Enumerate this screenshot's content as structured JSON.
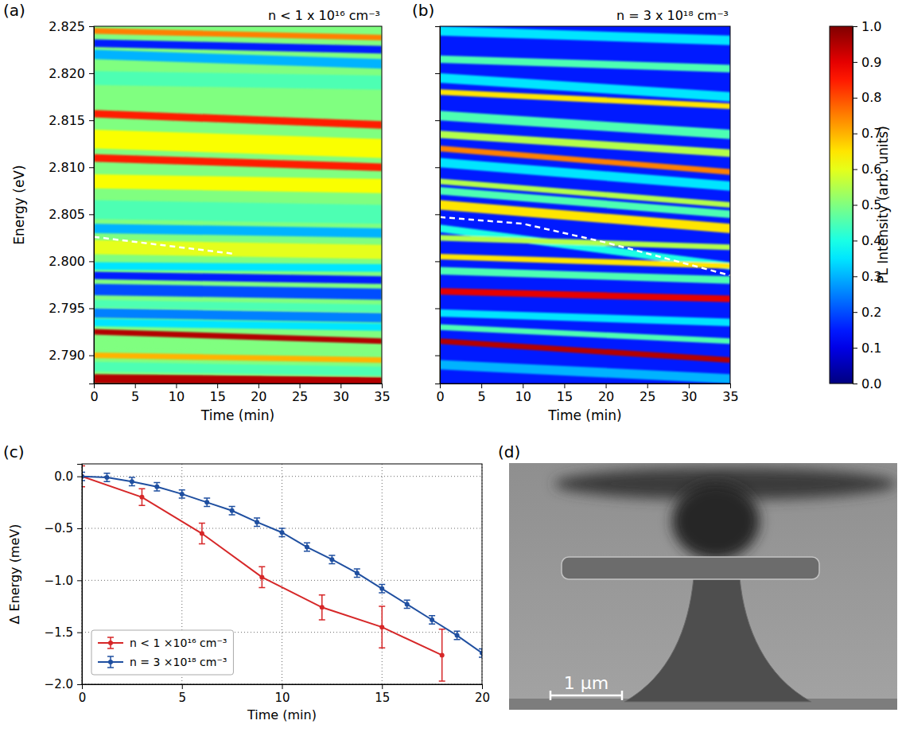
{
  "chart_data": [
    {
      "type": "heatmap",
      "panel": "(a)",
      "annotation": "n < 1 x 10¹⁶ cm⁻³",
      "xlabel": "Time (min)",
      "ylabel": "Energy (eV)",
      "xlim": [
        0,
        35
      ],
      "xticks": [
        0,
        5,
        10,
        15,
        20,
        25,
        30,
        35
      ],
      "ylim": [
        2.787,
        2.825
      ],
      "yticks": [
        {
          "value": 2.79,
          "label": "2.790"
        },
        2.795,
        {
          "value": 2.8,
          "label": "2.800"
        },
        2.805,
        {
          "value": 2.81,
          "label": "2.810"
        },
        2.815,
        {
          "value": 2.82,
          "label": "2.820"
        },
        2.825
      ],
      "tick_labels": true,
      "background": 0.5,
      "bands": [
        {
          "energy_start": 2.8245,
          "energy_end": 2.8238,
          "width": 0.0006,
          "intensity": 0.75
        },
        {
          "energy_start": 2.8232,
          "energy_end": 2.8225,
          "width": 0.0008,
          "intensity": 0.15
        },
        {
          "energy_start": 2.822,
          "energy_end": 2.821,
          "width": 0.001,
          "intensity": 0.3
        },
        {
          "energy_start": 2.8195,
          "energy_end": 2.819,
          "width": 0.0015,
          "intensity": 0.45
        },
        {
          "energy_start": 2.813,
          "energy_end": 2.812,
          "width": 0.002,
          "intensity": 0.62
        },
        {
          "energy_start": 2.8157,
          "energy_end": 2.8145,
          "width": 0.0008,
          "intensity": 0.85
        },
        {
          "energy_start": 2.811,
          "energy_end": 2.81,
          "width": 0.0008,
          "intensity": 0.85
        },
        {
          "energy_start": 2.8085,
          "energy_end": 2.808,
          "width": 0.0015,
          "intensity": 0.62
        },
        {
          "energy_start": 2.8055,
          "energy_end": 2.805,
          "width": 0.002,
          "intensity": 0.45
        },
        {
          "energy_start": 2.8035,
          "energy_end": 2.803,
          "width": 0.001,
          "intensity": 0.3
        },
        {
          "energy_start": 2.8015,
          "energy_end": 2.801,
          "width": 0.0015,
          "intensity": 0.6
        },
        {
          "energy_start": 2.7995,
          "energy_end": 2.7993,
          "width": 0.0008,
          "intensity": 0.35
        },
        {
          "energy_start": 2.7985,
          "energy_end": 2.798,
          "width": 0.0008,
          "intensity": 0.15
        },
        {
          "energy_start": 2.797,
          "energy_end": 2.7965,
          "width": 0.0012,
          "intensity": 0.2
        },
        {
          "energy_start": 2.7955,
          "energy_end": 2.795,
          "width": 0.0008,
          "intensity": 0.45
        },
        {
          "energy_start": 2.7945,
          "energy_end": 2.794,
          "width": 0.001,
          "intensity": 0.25
        },
        {
          "energy_start": 2.7935,
          "energy_end": 2.793,
          "width": 0.0008,
          "intensity": 0.35
        },
        {
          "energy_start": 2.7925,
          "energy_end": 2.7915,
          "width": 0.0006,
          "intensity": 0.95
        },
        {
          "energy_start": 2.7912,
          "energy_end": 2.7905,
          "width": 0.0008,
          "intensity": 0.5
        },
        {
          "energy_start": 2.79,
          "energy_end": 2.7895,
          "width": 0.0006,
          "intensity": 0.7
        },
        {
          "energy_start": 2.7888,
          "energy_end": 2.7883,
          "width": 0.001,
          "intensity": 0.45
        },
        {
          "energy_start": 2.7875,
          "energy_end": 2.7872,
          "width": 0.001,
          "intensity": 0.95
        }
      ],
      "guide_line": {
        "x": [
          0,
          17
        ],
        "y": [
          2.8026,
          2.8008
        ],
        "line_style": "dashed",
        "color": "#ffffff"
      }
    },
    {
      "type": "heatmap",
      "panel": "(b)",
      "annotation": "n = 3 x 10¹⁸ cm⁻³",
      "xlabel": "Time (min)",
      "xlim": [
        0,
        35
      ],
      "xticks": [
        0,
        5,
        10,
        15,
        20,
        25,
        30,
        35
      ],
      "ylim": [
        2.787,
        2.825
      ],
      "yticks": [
        2.79,
        2.795,
        2.8,
        2.805,
        2.81,
        2.815,
        2.82,
        2.825
      ],
      "tick_labels": "x",
      "background": 0.15,
      "bands": [
        {
          "energy_start": 2.8245,
          "energy_end": 2.8235,
          "width": 0.001,
          "intensity": 0.35
        },
        {
          "energy_start": 2.8215,
          "energy_end": 2.8205,
          "width": 0.0008,
          "intensity": 0.45
        },
        {
          "energy_start": 2.8195,
          "energy_end": 2.8175,
          "width": 0.001,
          "intensity": 0.35
        },
        {
          "energy_start": 2.818,
          "energy_end": 2.8165,
          "width": 0.0006,
          "intensity": 0.65
        },
        {
          "energy_start": 2.8155,
          "energy_end": 2.8135,
          "width": 0.001,
          "intensity": 0.45
        },
        {
          "energy_start": 2.8135,
          "energy_end": 2.8115,
          "width": 0.0008,
          "intensity": 0.55
        },
        {
          "energy_start": 2.812,
          "energy_end": 2.8095,
          "width": 0.0006,
          "intensity": 0.75
        },
        {
          "energy_start": 2.8105,
          "energy_end": 2.808,
          "width": 0.001,
          "intensity": 0.35
        },
        {
          "energy_start": 2.8085,
          "energy_end": 2.806,
          "width": 0.0006,
          "intensity": 0.55
        },
        {
          "energy_start": 2.8075,
          "energy_end": 2.805,
          "width": 0.0008,
          "intensity": 0.45
        },
        {
          "energy_start": 2.806,
          "energy_end": 2.8035,
          "width": 0.001,
          "intensity": 0.65
        },
        {
          "energy_start": 2.8035,
          "energy_end": 2.7995,
          "width": 0.0008,
          "intensity": 0.4
        },
        {
          "energy_start": 2.8025,
          "energy_end": 2.8015,
          "width": 0.0006,
          "intensity": 0.55
        },
        {
          "energy_start": 2.8005,
          "energy_end": 2.7995,
          "width": 0.0006,
          "intensity": 0.65
        },
        {
          "energy_start": 2.799,
          "energy_end": 2.798,
          "width": 0.0008,
          "intensity": 0.45
        },
        {
          "energy_start": 2.7968,
          "energy_end": 2.796,
          "width": 0.0007,
          "intensity": 0.9
        },
        {
          "energy_start": 2.7945,
          "energy_end": 2.7935,
          "width": 0.0008,
          "intensity": 0.35
        },
        {
          "energy_start": 2.793,
          "energy_end": 2.7915,
          "width": 0.0006,
          "intensity": 0.45
        },
        {
          "energy_start": 2.7915,
          "energy_end": 2.7895,
          "width": 0.0006,
          "intensity": 0.95
        },
        {
          "energy_start": 2.789,
          "energy_end": 2.7875,
          "width": 0.001,
          "intensity": 0.3
        }
      ],
      "guide_line": {
        "x": [
          0,
          10,
          20,
          35
        ],
        "y": [
          2.8047,
          2.804,
          2.802,
          2.7985
        ],
        "line_style": "dashed",
        "color": "#ffffff"
      },
      "colorbar": {
        "label": "PL Intensity (arb. units)",
        "range": [
          0,
          1
        ],
        "ticks": [
          {
            "value": 0,
            "label": "0.0"
          },
          0.1,
          0.2,
          0.3,
          0.4,
          0.5,
          0.6,
          0.7,
          0.8,
          0.9,
          {
            "value": 1,
            "label": "1.0"
          }
        ]
      }
    },
    {
      "type": "line",
      "panel": "(c)",
      "xlabel": "Time (min)",
      "ylabel": "Δ Energy (meV)",
      "xlim": [
        0,
        20
      ],
      "xticks": [
        0,
        5,
        10,
        15,
        20
      ],
      "ylim": [
        -2.0,
        0.12
      ],
      "yticks": [
        {
          "value": 0,
          "label": "0.0"
        },
        {
          "value": -0.5,
          "label": "−0.5"
        },
        {
          "value": -1.0,
          "label": "−1.0"
        },
        {
          "value": -1.5,
          "label": "−1.5"
        },
        {
          "value": -2.0,
          "label": "−2.0"
        }
      ],
      "grid": true,
      "legend": "lower left",
      "series": [
        {
          "name": "n < 1 ×10¹⁶ cm⁻³",
          "color": "#d62728",
          "marker": "o",
          "x": [
            0,
            3,
            6,
            9,
            12,
            15,
            18
          ],
          "values": [
            0,
            -0.2,
            -0.55,
            -0.97,
            -1.26,
            -1.45,
            -1.72
          ],
          "errors": [
            0.1,
            0.08,
            0.1,
            0.1,
            0.12,
            0.2,
            0.25
          ]
        },
        {
          "name": "n = 3 ×10¹⁸ cm⁻³",
          "color": "#1f4fa0",
          "marker": "o",
          "x": [
            0,
            1.25,
            2.5,
            3.75,
            5,
            6.25,
            7.5,
            8.75,
            10,
            11.25,
            12.5,
            13.75,
            15,
            16.25,
            17.5,
            18.75,
            20
          ],
          "values": [
            0,
            -0.01,
            -0.05,
            -0.1,
            -0.17,
            -0.25,
            -0.33,
            -0.44,
            -0.54,
            -0.68,
            -0.8,
            -0.93,
            -1.08,
            -1.23,
            -1.38,
            -1.53,
            -1.7
          ],
          "errors": [
            0.04,
            0.04,
            0.04,
            0.04,
            0.04,
            0.04,
            0.04,
            0.04,
            0.04,
            0.04,
            0.04,
            0.04,
            0.04,
            0.04,
            0.04,
            0.04,
            0.04
          ]
        }
      ]
    },
    {
      "type": "image",
      "panel": "(d)",
      "scale_bar_label": "1 μm"
    }
  ]
}
